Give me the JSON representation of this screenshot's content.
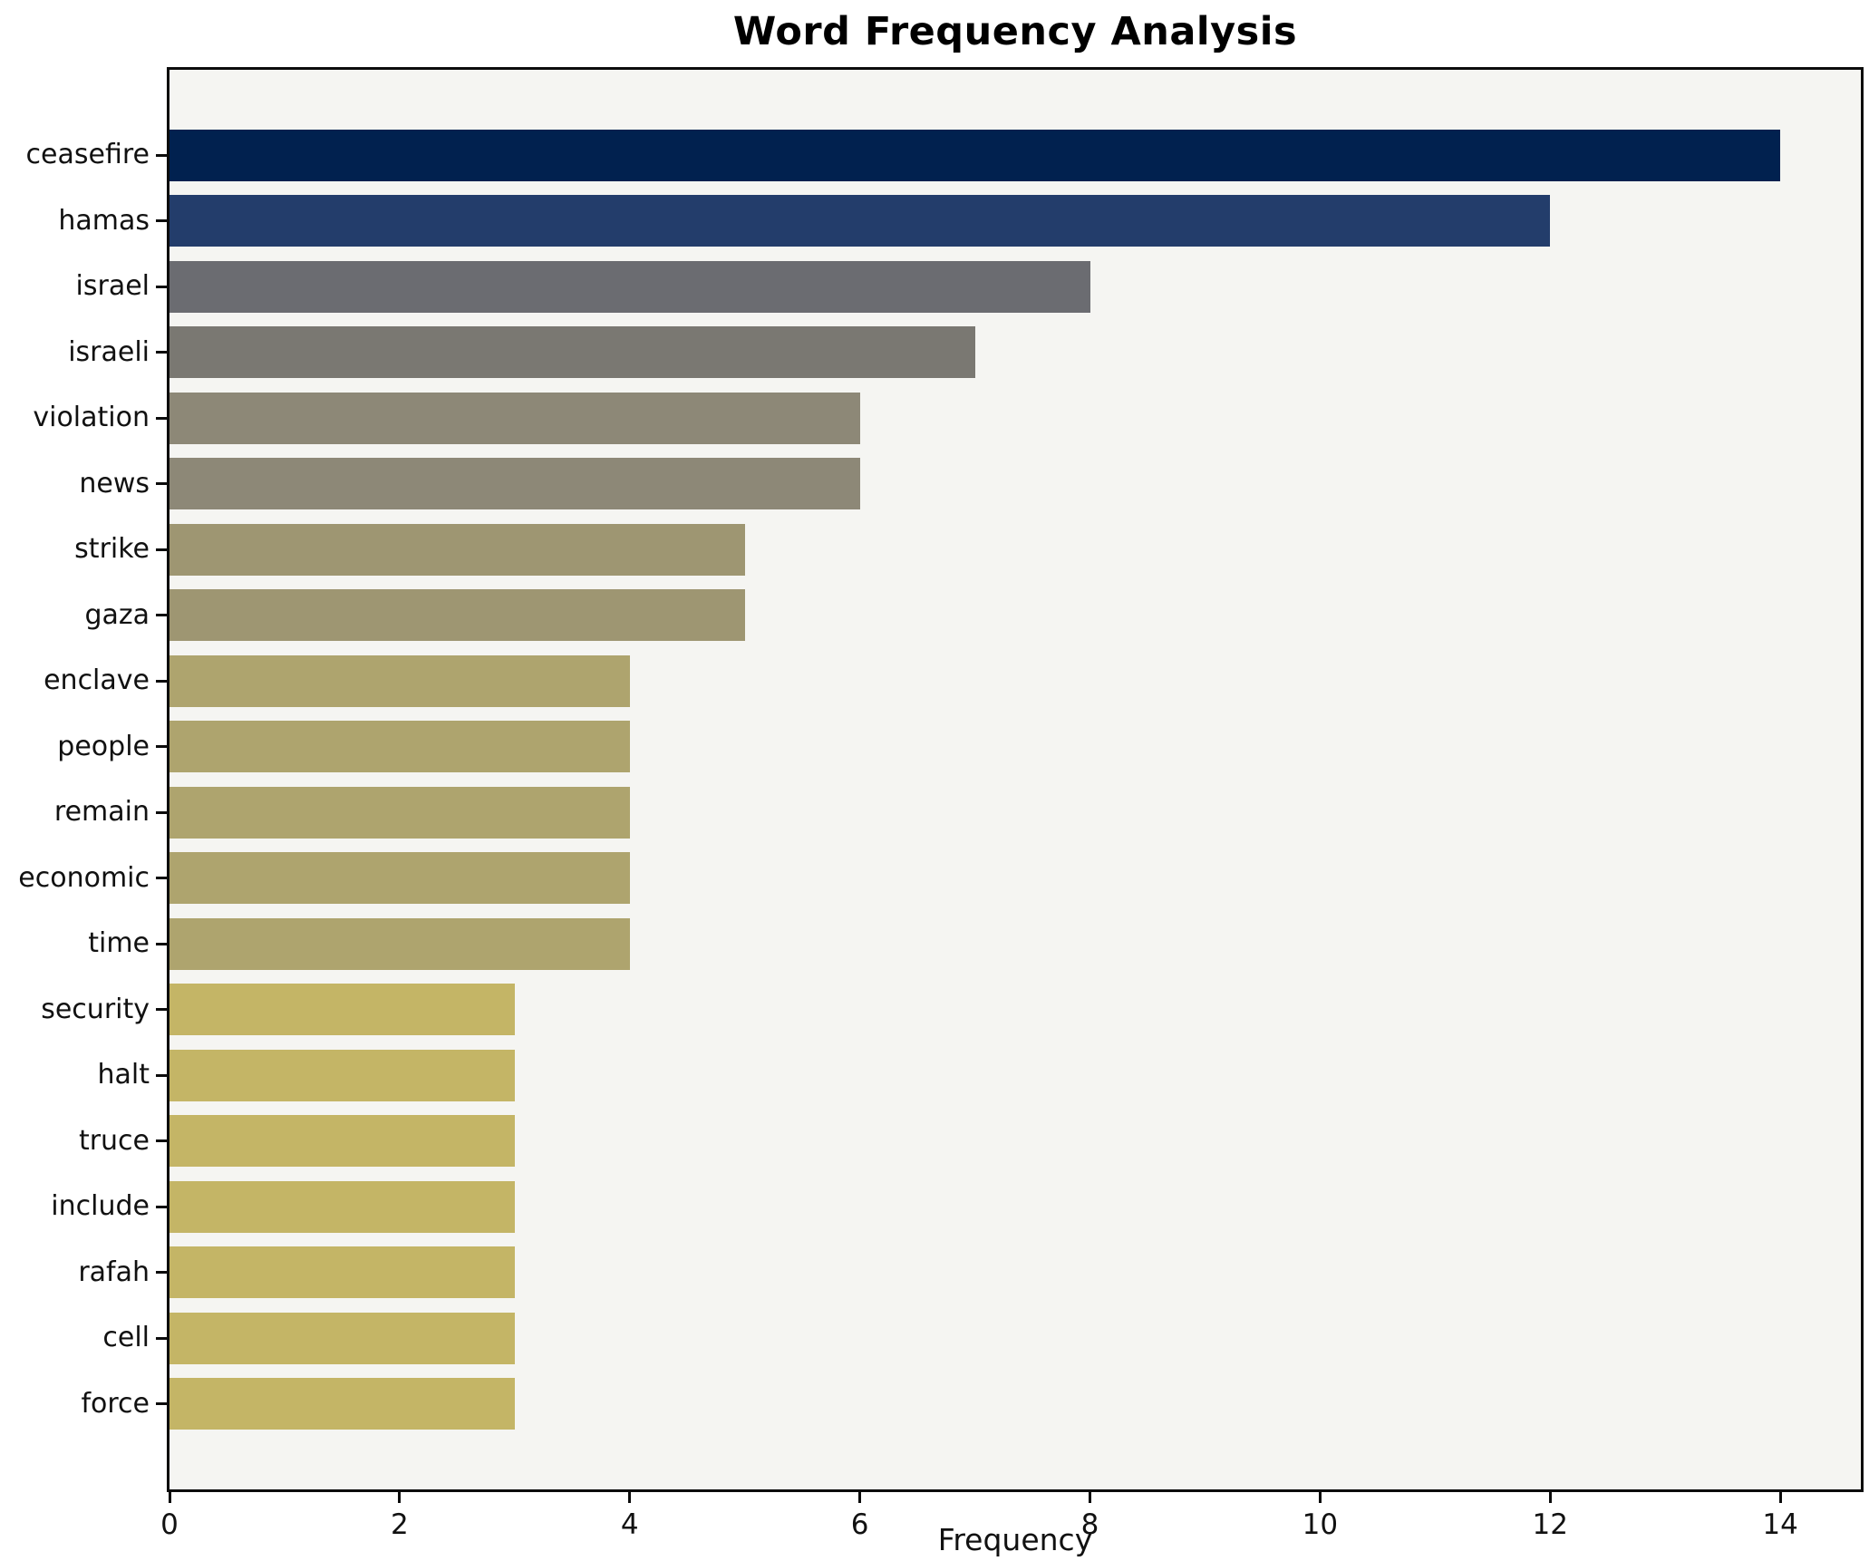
{
  "chart_data": {
    "type": "bar",
    "orientation": "horizontal",
    "title": "Word Frequency Analysis",
    "xlabel": "Frequency",
    "ylabel": "",
    "categories": [
      "ceasefire",
      "hamas",
      "israel",
      "israeli",
      "violation",
      "news",
      "strike",
      "gaza",
      "enclave",
      "people",
      "remain",
      "economic",
      "time",
      "security",
      "halt",
      "truce",
      "include",
      "rafah",
      "cell",
      "force"
    ],
    "values": [
      14,
      12,
      8,
      7,
      6,
      6,
      5,
      5,
      4,
      4,
      4,
      4,
      4,
      3,
      3,
      3,
      3,
      3,
      3,
      3
    ],
    "bar_colors": [
      "#01214f",
      "#233d6b",
      "#6b6c71",
      "#7a7872",
      "#8d8877",
      "#8d8877",
      "#9e9672",
      "#9e9672",
      "#aea46e",
      "#aea46e",
      "#aea46e",
      "#aea46e",
      "#aea46e",
      "#c4b566",
      "#c4b566",
      "#c4b566",
      "#c4b566",
      "#c4b566",
      "#c4b566",
      "#c4b566"
    ],
    "xlim": [
      0,
      14.7
    ],
    "x_ticks": [
      0,
      2,
      4,
      6,
      8,
      10,
      12,
      14
    ],
    "grid": false,
    "legend": null,
    "plot_background": "#f5f5f2",
    "figure_background": "#ffffff",
    "spine_color": "#0c0c0c"
  }
}
